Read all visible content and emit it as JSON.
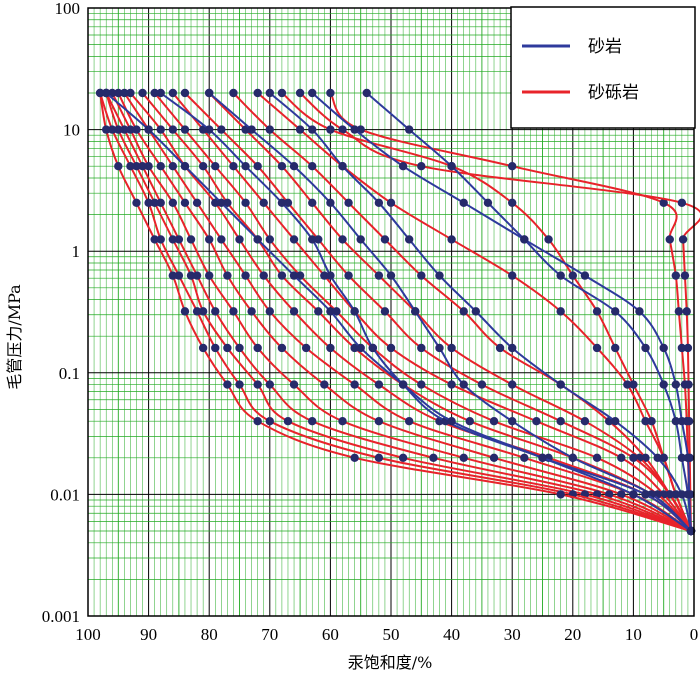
{
  "chart_data": {
    "type": "line",
    "title": "",
    "xlabel": "汞饱和度/%",
    "ylabel": "毛管压力/MPa",
    "x_axis": {
      "range": [
        100,
        0
      ],
      "reversed": true,
      "ticks": [
        100,
        90,
        80,
        70,
        60,
        50,
        40,
        30,
        20,
        10,
        0
      ]
    },
    "y_axis": {
      "scale": "log",
      "range": [
        0.001,
        100
      ],
      "ticks": [
        0.001,
        0.01,
        0.1,
        1,
        10,
        100
      ],
      "tick_labels": [
        "0.001",
        "0.01",
        "0.1",
        "1",
        "10",
        "100"
      ]
    },
    "grid": true,
    "grid_color": "#22aa22",
    "legend": {
      "position": "top-right",
      "entries": [
        {
          "name": "砂岩",
          "color": "#2e3a9c"
        },
        {
          "name": "砂砾岩",
          "color": "#e8232a"
        }
      ]
    },
    "pressure_steps": [
      20,
      10,
      5,
      2.5,
      1.25,
      0.63,
      0.32,
      0.16,
      0.08,
      0.04,
      0.02,
      0.01,
      0.005
    ],
    "series": [
      {
        "lithology": "砂岩",
        "color": "#2e3a9c",
        "x": [
          54,
          47,
          40,
          34,
          28,
          22,
          13,
          8,
          5,
          3,
          2,
          1,
          0.5
        ]
      },
      {
        "lithology": "砂岩",
        "color": "#2e3a9c",
        "x": [
          63,
          56,
          48,
          38,
          28,
          18,
          9,
          5,
          3,
          2,
          1,
          0.8,
          0.5
        ]
      },
      {
        "lithology": "砂岩",
        "color": "#2e3a9c",
        "x": [
          70,
          63,
          58,
          52,
          47,
          42,
          36,
          30,
          22,
          13,
          6,
          2,
          0.5
        ]
      },
      {
        "lithology": "砂岩",
        "color": "#2e3a9c",
        "x": [
          80,
          73,
          66,
          60,
          55,
          50,
          46,
          42,
          38,
          30,
          20,
          7,
          0.5
        ]
      },
      {
        "lithology": "砂岩",
        "color": "#2e3a9c",
        "x": [
          88,
          80,
          74,
          68,
          63,
          60,
          56,
          53,
          48,
          41,
          25,
          8,
          0.5
        ]
      },
      {
        "lithology": "砂岩",
        "color": "#2e3a9c",
        "x": [
          97,
          90,
          84,
          78,
          72,
          66,
          60,
          55,
          48,
          40,
          25,
          10,
          0.5
        ]
      },
      {
        "lithology": "砂砾岩",
        "color": "#e8232a",
        "x": [
          60,
          55,
          30,
          5,
          4,
          3,
          2.5,
          2,
          1.5,
          1.2,
          1,
          0.8,
          0.5
        ]
      },
      {
        "lithology": "砂砾岩",
        "color": "#e8232a",
        "x": [
          65,
          58,
          45,
          2,
          1.8,
          1.5,
          1.2,
          1,
          0.9,
          0.8,
          0.7,
          0.6,
          0.5
        ]
      },
      {
        "lithology": "砂砾岩",
        "color": "#e8232a",
        "x": [
          68,
          60,
          40,
          30,
          24,
          20,
          16,
          13,
          10,
          7,
          5,
          3,
          0.5
        ]
      },
      {
        "lithology": "砂砾岩",
        "color": "#e8232a",
        "x": [
          72,
          65,
          58,
          50,
          40,
          30,
          22,
          16,
          11,
          8,
          5,
          3,
          0.5
        ]
      },
      {
        "lithology": "砂砾岩",
        "color": "#e8232a",
        "x": [
          76,
          70,
          63,
          57,
          51,
          45,
          38,
          32,
          22,
          14,
          8,
          4,
          0.5
        ]
      },
      {
        "lithology": "砂砾岩",
        "color": "#e8232a",
        "x": [
          80,
          74,
          68,
          63,
          58,
          52,
          46,
          40,
          30,
          18,
          9,
          4,
          0.5
        ]
      },
      {
        "lithology": "砂砾岩",
        "color": "#e8232a",
        "x": [
          84,
          78,
          72,
          67,
          62,
          57,
          51,
          45,
          35,
          22,
          10,
          4,
          0.5
        ]
      },
      {
        "lithology": "砂砾岩",
        "color": "#e8232a",
        "x": [
          86,
          81,
          76,
          71,
          66,
          61,
          56,
          50,
          40,
          26,
          12,
          5,
          0.5
        ]
      },
      {
        "lithology": "砂砾岩",
        "color": "#e8232a",
        "x": [
          89,
          84,
          79,
          74,
          70,
          65,
          59,
          53,
          45,
          33,
          16,
          6,
          0.5
        ]
      },
      {
        "lithology": "砂砾岩",
        "color": "#e8232a",
        "x": [
          91,
          86,
          81,
          77,
          72,
          68,
          62,
          56,
          48,
          37,
          20,
          7,
          0.5
        ]
      },
      {
        "lithology": "砂砾岩",
        "color": "#e8232a",
        "x": [
          93,
          88,
          84,
          79,
          75,
          71,
          66,
          60,
          52,
          42,
          24,
          8,
          0.5
        ]
      },
      {
        "lithology": "砂砾岩",
        "color": "#e8232a",
        "x": [
          94,
          90,
          86,
          82,
          78,
          74,
          70,
          64,
          56,
          47,
          28,
          10,
          0.5
        ]
      },
      {
        "lithology": "砂砾岩",
        "color": "#e8232a",
        "x": [
          95,
          92,
          88,
          84,
          80,
          77,
          73,
          68,
          61,
          52,
          33,
          12,
          0.5
        ]
      },
      {
        "lithology": "砂砾岩",
        "color": "#e8232a",
        "x": [
          96,
          93,
          90,
          86,
          83,
          80,
          76,
          72,
          66,
          58,
          38,
          14,
          0.5
        ]
      },
      {
        "lithology": "砂砾岩",
        "color": "#e8232a",
        "x": [
          97,
          94,
          91,
          88,
          85,
          82,
          79,
          75,
          70,
          63,
          43,
          16,
          0.5
        ]
      },
      {
        "lithology": "砂砾岩",
        "color": "#e8232a",
        "x": [
          97,
          95,
          92,
          89,
          86,
          83,
          81,
          77,
          72,
          67,
          48,
          18,
          0.5
        ]
      },
      {
        "lithology": "砂砾岩",
        "color": "#e8232a",
        "x": [
          98,
          96,
          93,
          90,
          88,
          85,
          82,
          79,
          75,
          70,
          52,
          20,
          0.5
        ]
      },
      {
        "lithology": "砂砾岩",
        "color": "#e8232a",
        "x": [
          98,
          97,
          95,
          92,
          89,
          86,
          84,
          81,
          77,
          72,
          56,
          22,
          0.5
        ]
      }
    ]
  }
}
